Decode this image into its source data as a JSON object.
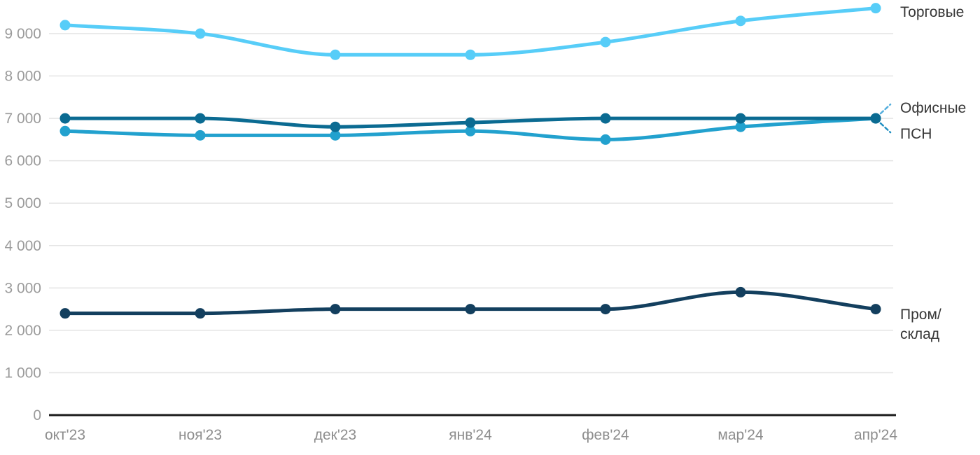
{
  "chart_data": {
    "type": "line",
    "title": "",
    "x_categories": [
      "окт'23",
      "ноя'23",
      "дек'23",
      "янв'24",
      "фев'24",
      "мар'24",
      "апр'24"
    ],
    "y_tick_labels": [
      "0",
      "1 000",
      "2 000",
      "3 000",
      "4 000",
      "5 000",
      "6 000",
      "7 000",
      "8 000",
      "9 000"
    ],
    "ylim": [
      0,
      9700
    ],
    "grid": true,
    "legend_position": "right-of-line-end",
    "series": [
      {
        "name": "Торговые",
        "label_lines": [
          "Торговые"
        ],
        "color": "#57cdf8",
        "values": [
          9200,
          9000,
          8500,
          8500,
          8800,
          9300,
          9600
        ]
      },
      {
        "name": "Офисные",
        "label_lines": [
          "Офисные"
        ],
        "color": "#0b6b92",
        "values": [
          7000,
          7000,
          6800,
          6900,
          7000,
          7000,
          7000
        ]
      },
      {
        "name": "ПСН",
        "label_lines": [
          "ПСН"
        ],
        "color": "#22a1ce",
        "values": [
          6700,
          6600,
          6600,
          6700,
          6500,
          6800,
          7000
        ]
      },
      {
        "name": "Пром/склад",
        "label_lines": [
          "Пром/",
          "склад"
        ],
        "color": "#133f5e",
        "values": [
          2400,
          2400,
          2500,
          2500,
          2500,
          2900,
          2500
        ]
      }
    ]
  },
  "colors": {
    "background": "#ffffff",
    "grid": "#e4e4e4",
    "axis": "#1b1b1b",
    "y_tick_label": "#9b9b9b",
    "x_tick_label": "#8d8d8d",
    "series_label_text": "#363636",
    "connector_upper": "#54aedd",
    "connector_lower": "#1f8fc2"
  }
}
